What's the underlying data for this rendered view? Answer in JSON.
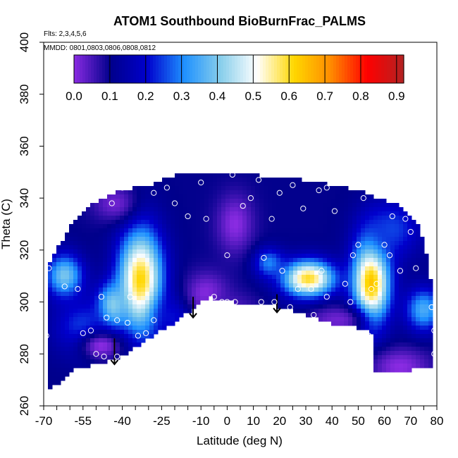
{
  "chart_data": {
    "type": "heatmap",
    "title": "ATOM1 Southbound BioBurnFrac_PALMS",
    "notes": [
      "Flts: 2,3,4,5,6",
      "MMDD: 0801,0803,0806,0808,0812"
    ],
    "xlabel": "Latitude (deg N)",
    "ylabel": "Theta (C)",
    "xlim": [
      -70,
      80
    ],
    "ylim": [
      260,
      400
    ],
    "x_ticks": [
      -70,
      -55,
      -40,
      -25,
      -10,
      0,
      10,
      20,
      30,
      40,
      50,
      60,
      70,
      80
    ],
    "x_tick_labels": [
      "-70",
      "-55",
      "-40",
      "-25",
      "-10",
      "0",
      "10",
      "20",
      "30",
      "40",
      "50",
      "60",
      "70",
      "80"
    ],
    "x_minor_step": 5,
    "y_ticks": [
      260,
      280,
      300,
      320,
      340,
      360,
      380,
      400
    ],
    "y_tick_labels": [
      "260",
      "280",
      "300",
      "320",
      "340",
      "360",
      "380",
      "400"
    ],
    "colorbar": {
      "range": [
        0,
        0.92
      ],
      "ticks": [
        0.0,
        0.1,
        0.2,
        0.3,
        0.4,
        0.5,
        0.6,
        0.7,
        0.8,
        0.9
      ],
      "tick_labels": [
        "0.0",
        "0.1",
        "0.2",
        "0.3",
        "0.4",
        "0.5",
        "0.6",
        "0.7",
        "0.8",
        "0.9"
      ],
      "stops": [
        "#8a2be2",
        "#00008b",
        "#0000cd",
        "#1e90ff",
        "#87ceeb",
        "#ffffff",
        "#ffd700",
        "#ff8c00",
        "#ff0000",
        "#b22222"
      ]
    },
    "field": {
      "background": 0.1,
      "hotspots": [
        {
          "lat": -33,
          "theta": 308,
          "value": 0.62,
          "sx": 6,
          "sy": 14
        },
        {
          "lat": -44,
          "theta": 298,
          "value": 0.45,
          "sx": 4,
          "sy": 6
        },
        {
          "lat": 55,
          "theta": 308,
          "value": 0.65,
          "sx": 5,
          "sy": 12
        },
        {
          "lat": 31,
          "theta": 309,
          "value": 0.6,
          "sx": 7,
          "sy": 5
        },
        {
          "lat": -62,
          "theta": 310,
          "value": 0.4,
          "sx": 5,
          "sy": 6
        },
        {
          "lat": 75,
          "theta": 297,
          "value": 0.35,
          "sx": 5,
          "sy": 6
        },
        {
          "lat": -55,
          "theta": 290,
          "value": 0.25,
          "sx": 8,
          "sy": 8
        },
        {
          "lat": -20,
          "theta": 295,
          "value": 0.22,
          "sx": 6,
          "sy": 6
        },
        {
          "lat": -8,
          "theta": 303,
          "value": 0.0,
          "sx": 6,
          "sy": 6
        },
        {
          "lat": 2,
          "theta": 298,
          "value": 0.05,
          "sx": 7,
          "sy": 4
        },
        {
          "lat": -48,
          "theta": 283,
          "value": 0.0,
          "sx": 6,
          "sy": 4
        },
        {
          "lat": 66,
          "theta": 275,
          "value": 0.0,
          "sx": 8,
          "sy": 5
        },
        {
          "lat": 42,
          "theta": 293,
          "value": 0.02,
          "sx": 8,
          "sy": 4
        },
        {
          "lat": 3,
          "theta": 330,
          "value": 0.0,
          "sx": 5,
          "sy": 8
        },
        {
          "lat": -43,
          "theta": 338,
          "value": 0.02,
          "sx": 6,
          "sy": 5
        },
        {
          "lat": 63,
          "theta": 328,
          "value": 0.25,
          "sx": 8,
          "sy": 8
        },
        {
          "lat": 16,
          "theta": 315,
          "value": 0.3,
          "sx": 4,
          "sy": 4
        }
      ],
      "outline": [
        [
          -68,
          266
        ],
        [
          -58,
          274
        ],
        [
          -42,
          278
        ],
        [
          -30,
          286
        ],
        [
          -20,
          292
        ],
        [
          -7,
          302
        ],
        [
          2,
          300
        ],
        [
          12,
          299
        ],
        [
          22,
          298
        ],
        [
          32,
          294
        ],
        [
          42,
          291
        ],
        [
          50,
          290
        ],
        [
          55,
          288
        ],
        [
          56,
          273
        ],
        [
          70,
          273
        ],
        [
          72,
          275
        ],
        [
          79,
          275
        ],
        [
          79,
          300
        ],
        [
          76,
          318
        ],
        [
          73,
          330
        ],
        [
          66,
          337
        ],
        [
          60,
          339
        ],
        [
          50,
          343
        ],
        [
          40,
          345
        ],
        [
          30,
          347
        ],
        [
          20,
          348
        ],
        [
          10,
          349
        ],
        [
          0,
          350
        ],
        [
          -10,
          350
        ],
        [
          -20,
          349
        ],
        [
          -30,
          345
        ],
        [
          -40,
          343
        ],
        [
          -48,
          340
        ],
        [
          -52,
          337
        ],
        [
          -58,
          332
        ],
        [
          -62,
          325
        ],
        [
          -68,
          315
        ]
      ]
    },
    "points": [
      [
        -69,
        287
      ],
      [
        -68,
        313
      ],
      [
        -62,
        306
      ],
      [
        -57,
        305
      ],
      [
        -55,
        288
      ],
      [
        -52,
        289
      ],
      [
        -50,
        280
      ],
      [
        -47,
        279
      ],
      [
        -48,
        302
      ],
      [
        -46,
        294
      ],
      [
        -42,
        279
      ],
      [
        -42,
        293
      ],
      [
        -38,
        292
      ],
      [
        -37,
        302
      ],
      [
        -34,
        287
      ],
      [
        -31,
        288
      ],
      [
        -28,
        293
      ],
      [
        -23,
        344
      ],
      [
        -15,
        333
      ],
      [
        -13,
        292
      ],
      [
        -8,
        332
      ],
      [
        -5,
        302
      ],
      [
        -2,
        300
      ],
      [
        0,
        299
      ],
      [
        0,
        300
      ],
      [
        0,
        318
      ],
      [
        3,
        300
      ],
      [
        6,
        337
      ],
      [
        9,
        340
      ],
      [
        13,
        300
      ],
      [
        14,
        317
      ],
      [
        17,
        332
      ],
      [
        18,
        300
      ],
      [
        20,
        342
      ],
      [
        21,
        312
      ],
      [
        24,
        298
      ],
      [
        27,
        305
      ],
      [
        29,
        336
      ],
      [
        32,
        305
      ],
      [
        33,
        295
      ],
      [
        35,
        343
      ],
      [
        36,
        312
      ],
      [
        38,
        302
      ],
      [
        41,
        335
      ],
      [
        45,
        307
      ],
      [
        47,
        300
      ],
      [
        48,
        318
      ],
      [
        50,
        322
      ],
      [
        54,
        287
      ],
      [
        55,
        305
      ],
      [
        57,
        307
      ],
      [
        60,
        322
      ],
      [
        62,
        318
      ],
      [
        66,
        312
      ],
      [
        68,
        332
      ],
      [
        70,
        327
      ],
      [
        72,
        313
      ],
      [
        75,
        335
      ],
      [
        78,
        298
      ],
      [
        79,
        289
      ],
      [
        79,
        280
      ],
      [
        -44,
        338
      ],
      [
        -40,
        344
      ],
      [
        -28,
        342
      ],
      [
        -20,
        338
      ],
      [
        -10,
        346
      ],
      [
        2,
        349
      ],
      [
        12,
        347
      ],
      [
        25,
        345
      ],
      [
        38,
        344
      ],
      [
        52,
        340
      ],
      [
        63,
        333
      ]
    ],
    "arrows": [
      {
        "lat": -43,
        "theta_from": 286,
        "theta_to": 276
      },
      {
        "lat": -13,
        "theta_from": 302,
        "theta_to": 294
      },
      {
        "lat": 19,
        "theta_from": 303,
        "theta_to": 296
      }
    ]
  }
}
